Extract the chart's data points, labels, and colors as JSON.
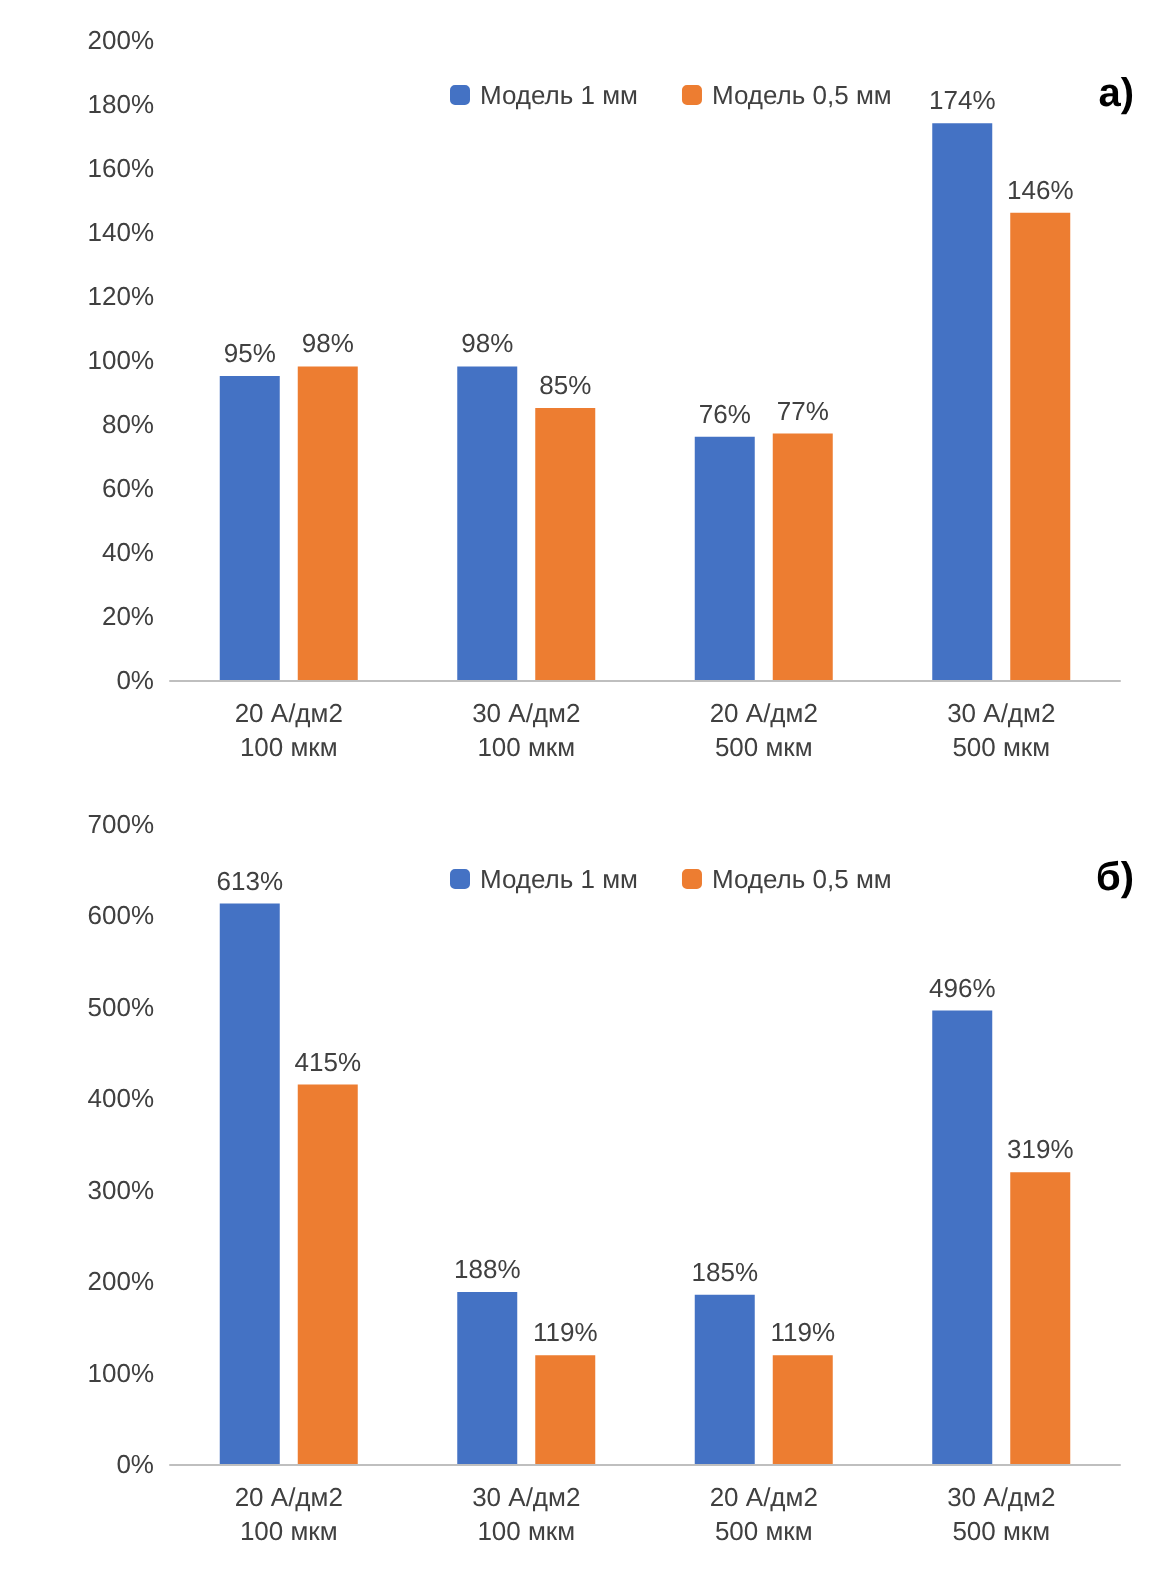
{
  "chart_data": [
    {
      "type": "bar",
      "title": "а)",
      "categories": [
        "20 А/дм2\n100 мкм",
        "30 А/дм2\n100 мкм",
        "20 А/дм2\n500 мкм",
        "30 А/дм2\n500 мкм"
      ],
      "series": [
        {
          "name": "Модель 1 мм",
          "color": "#4472c4",
          "values": [
            95,
            98,
            76,
            174
          ],
          "value_labels": [
            "95%",
            "98%",
            "76%",
            "174%"
          ]
        },
        {
          "name": "Модель 0,5 мм",
          "color": "#ed7d31",
          "values": [
            98,
            85,
            77,
            146
          ],
          "value_labels": [
            "98%",
            "85%",
            "77%",
            "146%"
          ]
        }
      ],
      "ylim": [
        0,
        200
      ],
      "yticks": [
        {
          "value": 0,
          "label": "0%"
        },
        {
          "value": 20,
          "label": "20%"
        },
        {
          "value": 40,
          "label": "40%"
        },
        {
          "value": 60,
          "label": "60%"
        },
        {
          "value": 80,
          "label": "80%"
        },
        {
          "value": 100,
          "label": "100%"
        },
        {
          "value": 120,
          "label": "120%"
        },
        {
          "value": 140,
          "label": "140%"
        },
        {
          "value": 160,
          "label": "160%"
        },
        {
          "value": 180,
          "label": "180%"
        },
        {
          "value": 200,
          "label": "200%"
        }
      ],
      "grid": false,
      "legend": "top"
    },
    {
      "type": "bar",
      "title": "б)",
      "categories": [
        "20 А/дм2\n100 мкм",
        "30 А/дм2\n100 мкм",
        "20 А/дм2\n500 мкм",
        "30 А/дм2\n500 мкм"
      ],
      "series": [
        {
          "name": "Модель 1 мм",
          "color": "#4472c4",
          "values": [
            613,
            188,
            185,
            496
          ],
          "value_labels": [
            "613%",
            "188%",
            "185%",
            "496%"
          ]
        },
        {
          "name": "Модель 0,5 мм",
          "color": "#ed7d31",
          "values": [
            415,
            119,
            119,
            319
          ],
          "value_labels": [
            "415%",
            "119%",
            "119%",
            "319%"
          ]
        }
      ],
      "ylim": [
        0,
        700
      ],
      "yticks": [
        {
          "value": 0,
          "label": "0%"
        },
        {
          "value": 100,
          "label": "100%"
        },
        {
          "value": 200,
          "label": "200%"
        },
        {
          "value": 300,
          "label": "300%"
        },
        {
          "value": 400,
          "label": "400%"
        },
        {
          "value": 500,
          "label": "500%"
        },
        {
          "value": 600,
          "label": "600%"
        },
        {
          "value": 700,
          "label": "700%"
        }
      ],
      "grid": false,
      "legend": "top"
    }
  ]
}
